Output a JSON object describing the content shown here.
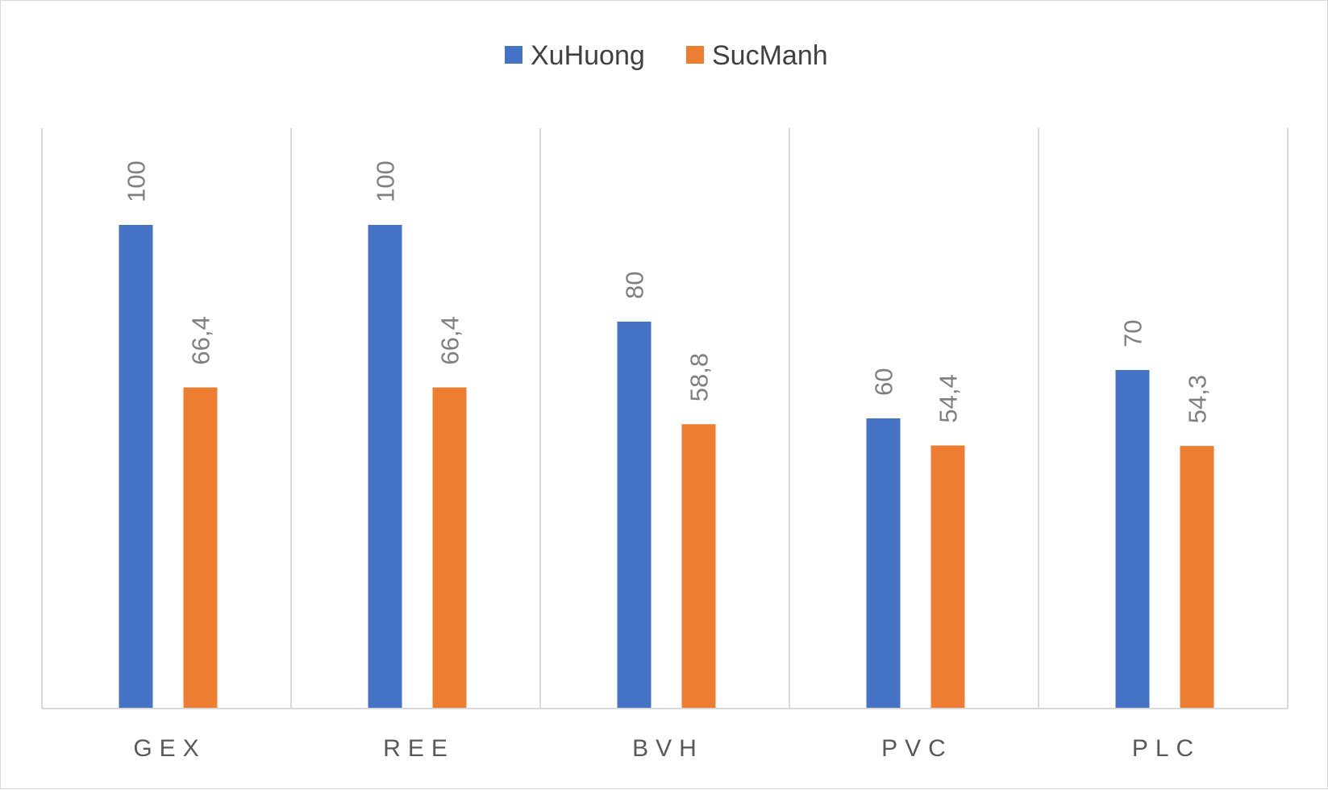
{
  "chart_data": {
    "type": "bar",
    "categories": [
      "GEX",
      "REE",
      "BVH",
      "PVC",
      "PLC"
    ],
    "series": [
      {
        "name": "XuHuong",
        "values": [
          100,
          100,
          80,
          60,
          70
        ],
        "labels": [
          "100",
          "100",
          "80",
          "60",
          "70"
        ],
        "color": "#4472c4"
      },
      {
        "name": "SucManh",
        "values": [
          66.4,
          66.4,
          58.8,
          54.4,
          54.3
        ],
        "labels": [
          "66,4",
          "66,4",
          "58,8",
          "54,4",
          "54,3"
        ],
        "color": "#ed7d31"
      }
    ],
    "ylim": [
      0,
      120
    ],
    "legend": "top-center",
    "grid": "vertical category separators"
  }
}
